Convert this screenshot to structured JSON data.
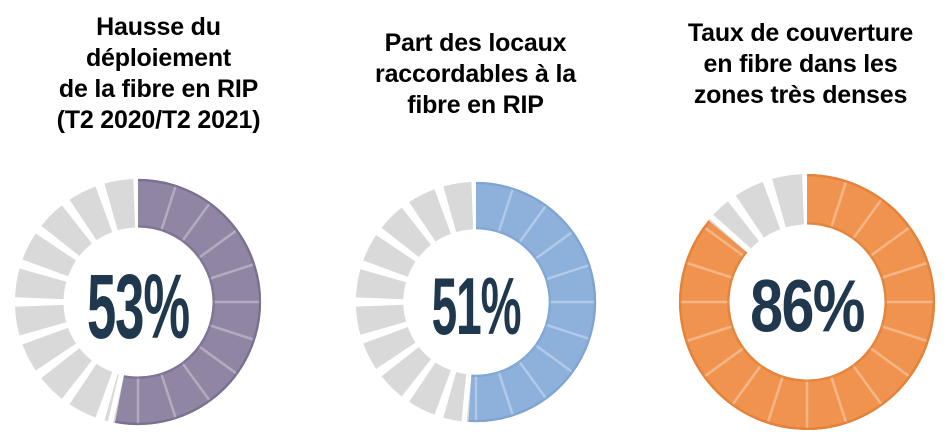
{
  "chart_data": [
    {
      "type": "pie",
      "variant": "segmented-donut",
      "title": "Hausse du déploiement de la fibre en RIP (T2 2020/T2 2021)",
      "title_lines": [
        "Hausse du",
        "déploiement",
        "de la fibre en RIP",
        "(T2 2020/T2 2021)"
      ],
      "value_pct": 53,
      "remainder_pct": 47,
      "label": "53%",
      "segments_per_ring": 20,
      "start_angle_deg": 0,
      "direction": "clockwise",
      "color": "#9085A3",
      "edge_color": "#776C8D",
      "divider_color": "rgba(255,255,255,0.32)",
      "remainder_color": "#D9D9D9",
      "number_color": "#20384E"
    },
    {
      "type": "pie",
      "variant": "segmented-donut",
      "title": "Part des locaux raccordables à la fibre en RIP",
      "title_lines": [
        "Part des locaux",
        "raccordables à la",
        "fibre en RIP"
      ],
      "value_pct": 51,
      "remainder_pct": 49,
      "label": "51%",
      "segments_per_ring": 20,
      "start_angle_deg": 0,
      "direction": "clockwise",
      "color": "#8EB1DC",
      "edge_color": "#7BA2D2",
      "divider_color": "rgba(255,255,255,0.32)",
      "remainder_color": "#D9D9D9",
      "number_color": "#20384E"
    },
    {
      "type": "pie",
      "variant": "segmented-donut",
      "title": "Taux de couverture en fibre dans les zones très denses",
      "title_lines": [
        "Taux de couverture",
        "en fibre dans les",
        "zones très denses"
      ],
      "value_pct": 86,
      "remainder_pct": 14,
      "label": "86%",
      "segments_per_ring": 20,
      "start_angle_deg": 0,
      "direction": "clockwise",
      "color": "#F0934E",
      "edge_color": "#E07F35",
      "divider_color": "rgba(255,255,255,0.32)",
      "remainder_color": "#D9D9D9",
      "number_color": "#20384E"
    }
  ]
}
